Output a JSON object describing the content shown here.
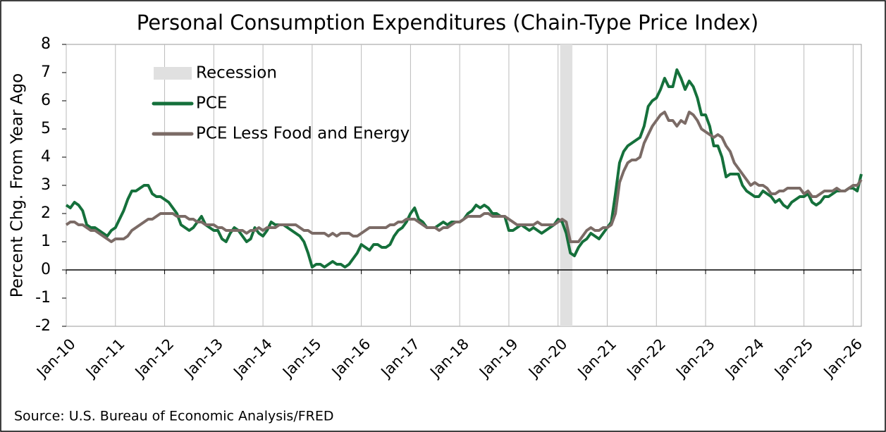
{
  "chart_data": {
    "type": "line",
    "title": "Personal Consumption Expenditures (Chain-Type Price Index)",
    "y_label": "Percent Chg. From Year Ago",
    "source": "Source: U.S. Bureau of Economic Analysis/FRED",
    "categories": [
      "Jan-10",
      null,
      null,
      null,
      null,
      null,
      null,
      null,
      null,
      null,
      null,
      null,
      "Jan-11",
      null,
      null,
      null,
      null,
      null,
      null,
      null,
      null,
      null,
      null,
      null,
      "Jan-12",
      null,
      null,
      null,
      null,
      null,
      null,
      null,
      null,
      null,
      null,
      null,
      "Jan-13",
      null,
      null,
      null,
      null,
      null,
      null,
      null,
      null,
      null,
      null,
      null,
      "Jan-14",
      null,
      null,
      null,
      null,
      null,
      null,
      null,
      null,
      null,
      null,
      null,
      "Jan-15",
      null,
      null,
      null,
      null,
      null,
      null,
      null,
      null,
      null,
      null,
      null,
      "Jan-16",
      null,
      null,
      null,
      null,
      null,
      null,
      null,
      null,
      null,
      null,
      null,
      "Jan-17",
      null,
      null,
      null,
      null,
      null,
      null,
      null,
      null,
      null,
      null,
      null,
      "Jan-18",
      null,
      null,
      null,
      null,
      null,
      null,
      null,
      null,
      null,
      null,
      null,
      "Jan-19",
      null,
      null,
      null,
      null,
      null,
      null,
      null,
      null,
      null,
      null,
      null,
      "Jan-20",
      null,
      null,
      null,
      null,
      null,
      null,
      null,
      null,
      null,
      null,
      null,
      "Jan-21",
      null,
      null,
      null,
      null,
      null,
      null,
      null,
      null,
      null,
      null,
      null,
      "Jan-22",
      null,
      null,
      null,
      null,
      null,
      null,
      null,
      null,
      null,
      null,
      null,
      "Jan-23",
      null,
      null,
      null,
      null,
      null,
      null,
      null,
      null,
      null,
      null,
      null,
      "Jan-24",
      null,
      null,
      null,
      null,
      null,
      null,
      null,
      null,
      null,
      null,
      null,
      "Jan-25",
      null,
      null,
      null,
      null,
      null,
      null,
      null,
      null,
      null,
      null,
      null,
      "Jan-26",
      null,
      null
    ],
    "recession": {
      "name": "Recession",
      "color": "#e0e0e0",
      "range": [
        121,
        123
      ]
    },
    "series": [
      {
        "name": "PCE",
        "color": "#15703b",
        "values": [
          2.3,
          2.2,
          2.4,
          2.3,
          2.1,
          1.6,
          1.5,
          1.5,
          1.4,
          1.3,
          1.2,
          1.4,
          1.5,
          1.8,
          2.1,
          2.5,
          2.8,
          2.8,
          2.9,
          3.0,
          3.0,
          2.7,
          2.6,
          2.6,
          2.5,
          2.4,
          2.2,
          2.0,
          1.6,
          1.5,
          1.4,
          1.5,
          1.7,
          1.9,
          1.6,
          1.5,
          1.4,
          1.4,
          1.1,
          1.0,
          1.3,
          1.5,
          1.4,
          1.2,
          1.0,
          1.1,
          1.5,
          1.3,
          1.2,
          1.4,
          1.7,
          1.6,
          1.6,
          1.6,
          1.5,
          1.4,
          1.3,
          1.2,
          1.0,
          0.6,
          0.1,
          0.2,
          0.2,
          0.1,
          0.2,
          0.3,
          0.2,
          0.2,
          0.1,
          0.2,
          0.4,
          0.6,
          0.9,
          0.8,
          0.7,
          0.9,
          0.9,
          0.8,
          0.8,
          0.9,
          1.2,
          1.4,
          1.5,
          1.7,
          2.0,
          2.2,
          1.8,
          1.7,
          1.5,
          1.5,
          1.5,
          1.6,
          1.7,
          1.6,
          1.7,
          1.7,
          1.7,
          1.8,
          2.0,
          2.1,
          2.3,
          2.2,
          2.3,
          2.2,
          2.0,
          2.0,
          1.9,
          1.9,
          1.4,
          1.4,
          1.5,
          1.6,
          1.5,
          1.4,
          1.5,
          1.4,
          1.3,
          1.4,
          1.5,
          1.6,
          1.8,
          1.7,
          1.3,
          0.6,
          0.5,
          0.8,
          1.0,
          1.1,
          1.3,
          1.2,
          1.1,
          1.3,
          1.5,
          1.7,
          2.7,
          3.8,
          4.2,
          4.4,
          4.5,
          4.6,
          4.7,
          5.1,
          5.8,
          6.0,
          6.1,
          6.4,
          6.8,
          6.5,
          6.5,
          7.1,
          6.8,
          6.4,
          6.7,
          6.5,
          6.1,
          5.5,
          5.5,
          5.1,
          4.4,
          4.4,
          4.0,
          3.3,
          3.4,
          3.4,
          3.4,
          3.0,
          2.8,
          2.7,
          2.6,
          2.6,
          2.8,
          2.7,
          2.6,
          2.4,
          2.5,
          2.3,
          2.2,
          2.4,
          2.5,
          2.6,
          2.6,
          2.7,
          2.4,
          2.3,
          2.4,
          2.6,
          2.6,
          2.7,
          2.8,
          2.8,
          2.8,
          2.9,
          2.9,
          2.8,
          3.4
        ]
      },
      {
        "name": "PCE Less Food and Energy",
        "color": "#7b6b66",
        "values": [
          1.6,
          1.7,
          1.7,
          1.6,
          1.6,
          1.5,
          1.4,
          1.4,
          1.3,
          1.2,
          1.1,
          1.0,
          1.1,
          1.1,
          1.1,
          1.2,
          1.4,
          1.5,
          1.6,
          1.7,
          1.8,
          1.8,
          1.9,
          2.0,
          2.0,
          2.0,
          2.0,
          1.9,
          1.9,
          1.9,
          1.8,
          1.8,
          1.7,
          1.7,
          1.6,
          1.6,
          1.6,
          1.5,
          1.5,
          1.4,
          1.4,
          1.4,
          1.4,
          1.4,
          1.3,
          1.4,
          1.4,
          1.5,
          1.4,
          1.5,
          1.5,
          1.5,
          1.6,
          1.6,
          1.6,
          1.6,
          1.6,
          1.5,
          1.4,
          1.4,
          1.3,
          1.3,
          1.3,
          1.3,
          1.2,
          1.3,
          1.2,
          1.3,
          1.3,
          1.3,
          1.2,
          1.2,
          1.3,
          1.4,
          1.5,
          1.5,
          1.5,
          1.5,
          1.5,
          1.6,
          1.6,
          1.7,
          1.7,
          1.8,
          1.8,
          1.8,
          1.7,
          1.6,
          1.5,
          1.5,
          1.5,
          1.4,
          1.5,
          1.5,
          1.6,
          1.7,
          1.7,
          1.8,
          1.9,
          1.9,
          1.9,
          1.9,
          2.0,
          2.0,
          1.9,
          1.9,
          1.9,
          1.9,
          1.8,
          1.7,
          1.6,
          1.6,
          1.6,
          1.6,
          1.6,
          1.7,
          1.6,
          1.6,
          1.6,
          1.6,
          1.7,
          1.8,
          1.7,
          1.0,
          1.0,
          1.0,
          1.2,
          1.4,
          1.5,
          1.4,
          1.4,
          1.5,
          1.5,
          1.6,
          2.0,
          3.1,
          3.5,
          3.8,
          3.9,
          3.9,
          4.0,
          4.5,
          4.8,
          5.1,
          5.3,
          5.5,
          5.6,
          5.3,
          5.3,
          5.1,
          5.3,
          5.2,
          5.6,
          5.5,
          5.3,
          5.0,
          4.9,
          4.8,
          4.7,
          4.8,
          4.7,
          4.4,
          4.2,
          3.8,
          3.6,
          3.4,
          3.2,
          3.0,
          3.1,
          3.0,
          3.0,
          2.9,
          2.7,
          2.7,
          2.8,
          2.8,
          2.9,
          2.9,
          2.9,
          2.9,
          2.7,
          2.8,
          2.6,
          2.6,
          2.7,
          2.8,
          2.8,
          2.8,
          2.9,
          2.8,
          2.8,
          2.9,
          3.0,
          3.0,
          3.2
        ]
      }
    ],
    "ylim": [
      -2,
      8
    ],
    "yticks": [
      -2,
      -1,
      0,
      1,
      2,
      3,
      4,
      5,
      6,
      7,
      8
    ],
    "grid": true
  }
}
